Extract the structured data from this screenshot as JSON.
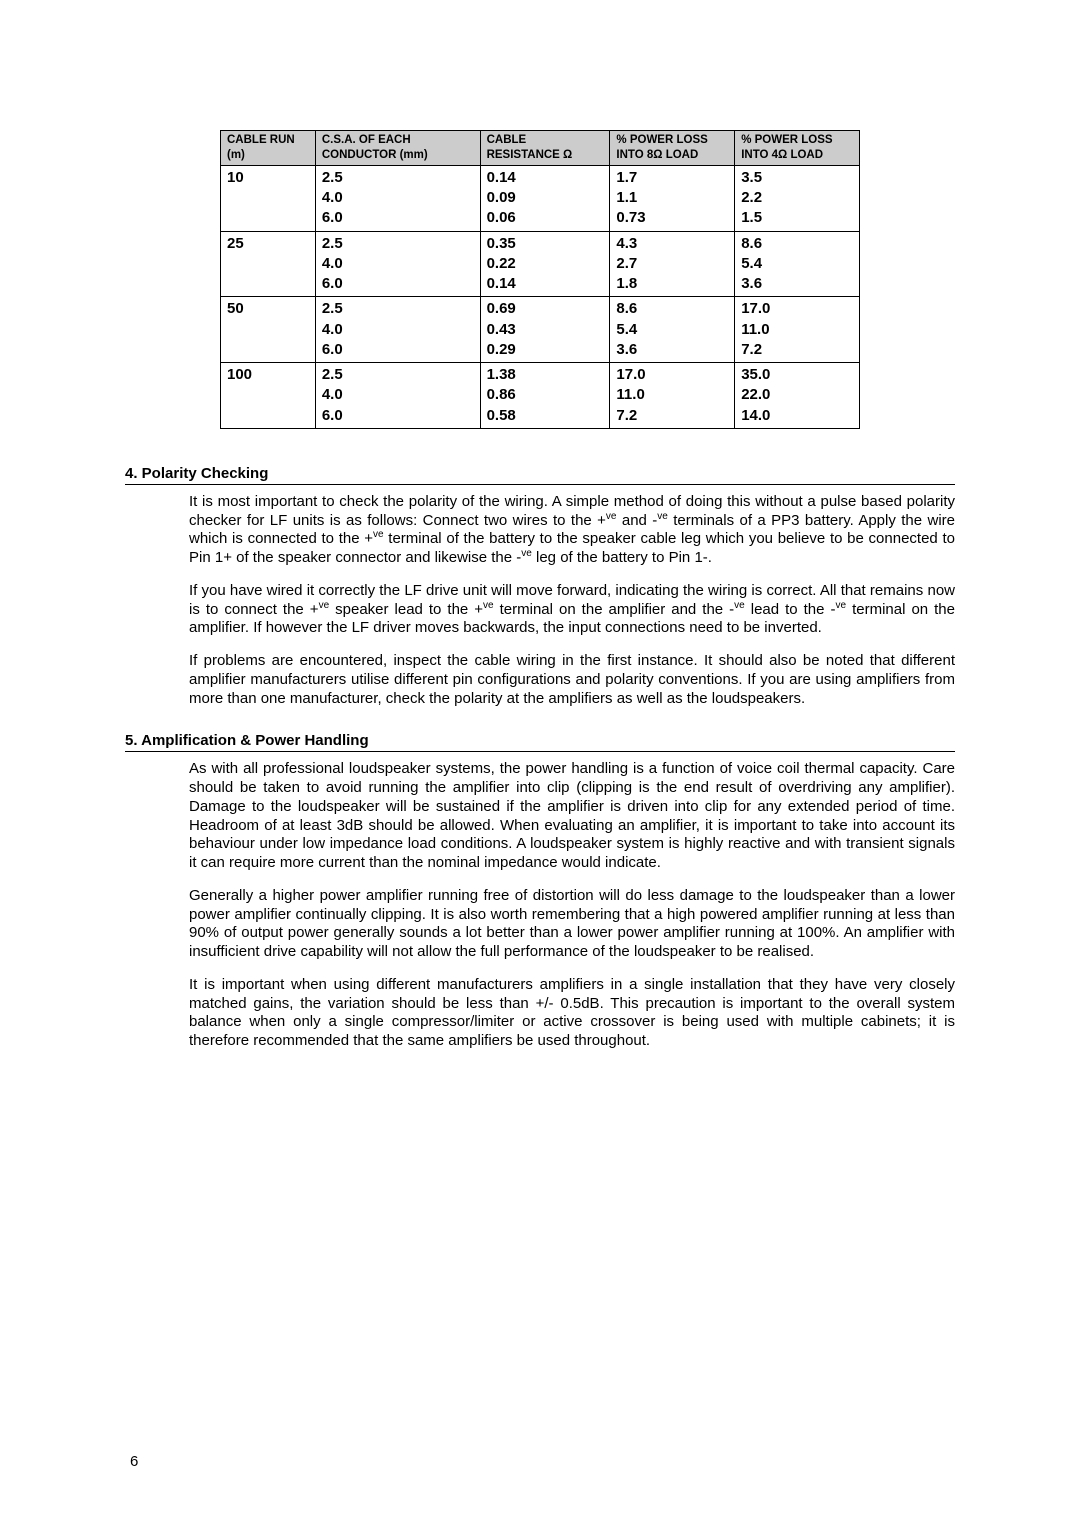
{
  "table": {
    "header_colors": {
      "background": "#cccccc",
      "border": "#000000"
    },
    "columns": [
      {
        "line1": "CABLE RUN",
        "line2": "(m)"
      },
      {
        "line1": "C.S.A. OF EACH",
        "line2": "CONDUCTOR (mm)"
      },
      {
        "line1": "CABLE",
        "line2": "RESISTANCE Ω"
      },
      {
        "line1": "% POWER LOSS",
        "line2": "INTO 8Ω LOAD"
      },
      {
        "line1": "% POWER LOSS",
        "line2": "INTO 4Ω LOAD"
      }
    ],
    "groups": [
      {
        "run": "10",
        "csa": [
          "2.5",
          "4.0",
          "6.0"
        ],
        "res": [
          "0.14",
          "0.09",
          "0.06"
        ],
        "p8": [
          "1.7",
          "1.1",
          "0.73"
        ],
        "p4": [
          "3.5",
          "2.2",
          "1.5"
        ]
      },
      {
        "run": "25",
        "csa": [
          "2.5",
          "4.0",
          "6.0"
        ],
        "res": [
          "0.35",
          "0.22",
          "0.14"
        ],
        "p8": [
          "4.3",
          "2.7",
          "1.8"
        ],
        "p4": [
          "8.6",
          "5.4",
          "3.6"
        ]
      },
      {
        "run": "50",
        "csa": [
          "2.5",
          "4.0",
          "6.0"
        ],
        "res": [
          "0.69",
          "0.43",
          "0.29"
        ],
        "p8": [
          "8.6",
          "5.4",
          "3.6"
        ],
        "p4": [
          "17.0",
          "11.0",
          "7.2"
        ]
      },
      {
        "run": "100",
        "csa": [
          "2.5",
          "4.0",
          "6.0"
        ],
        "res": [
          "1.38",
          "0.86",
          "0.58"
        ],
        "p8": [
          "17.0",
          "11.0",
          "7.2"
        ],
        "p4": [
          "35.0",
          "22.0",
          "14.0"
        ]
      }
    ]
  },
  "section4": {
    "heading": "4. Polarity Checking",
    "para1_a": "It is most important to check the polarity of the wiring. A simple method of doing this without a pulse based polarity checker for LF units is as follows: Connect two wires to the +",
    "para1_b": " and -",
    "para1_c": " terminals of a PP3 battery. Apply the wire which is connected to the +",
    "para1_d": " terminal of the battery to the speaker cable leg which you believe to be connected to Pin 1+ of the speaker connector and likewise the -",
    "para1_e": " leg of the battery to Pin 1-.",
    "para2_a": "If you have wired it correctly the LF drive unit will move forward, indicating the wiring is correct. All that remains now is to connect the +",
    "para2_b": "  speaker lead to the +",
    "para2_c": " terminal on the amplifier and the -",
    "para2_d": " lead to the -",
    "para2_e": " terminal on the amplifier. If however the LF driver moves backwards, the input connections need to be inverted.",
    "para3": "If problems are encountered, inspect the cable wiring in the first instance. It should also be noted that different amplifier manufacturers utilise different pin configurations and polarity conventions. If you are using amplifiers from more than one manufacturer, check the polarity at the amplifiers as well as the loudspeakers."
  },
  "section5": {
    "heading": "5. Amplification & Power Handling",
    "para1": "As with all professional loudspeaker systems, the power handling is a function of voice coil thermal capacity. Care should be taken to avoid running the amplifier into clip (clipping is the end result of overdriving any amplifier). Damage to the loudspeaker will be sustained if the amplifier is driven into clip for any extended period of time. Headroom of at least 3dB should be allowed. When evaluating an amplifier, it is important to take into account its behaviour under low impedance load conditions. A loudspeaker system is highly reactive and with transient signals it can require more current than the nominal impedance would indicate.",
    "para2": "Generally a higher power amplifier running free of distortion will do less damage to the loudspeaker than a lower power amplifier continually clipping. It is also worth remembering that a high powered amplifier running at less than 90% of output power generally sounds a lot better than a lower power amplifier running at 100%. An amplifier with insufficient drive capability will not allow the full performance of the loudspeaker to be realised.",
    "para3": "It is important when using different manufacturers amplifiers in a single installation that they have very closely matched gains, the variation should be less than +/- 0.5dB. This precaution is important to the overall system balance when only a single compressor/limiter or active crossover is being used with multiple cabinets; it is therefore recommended that the same amplifiers be used throughout."
  },
  "sup_ve": "ve",
  "page_number": "6"
}
